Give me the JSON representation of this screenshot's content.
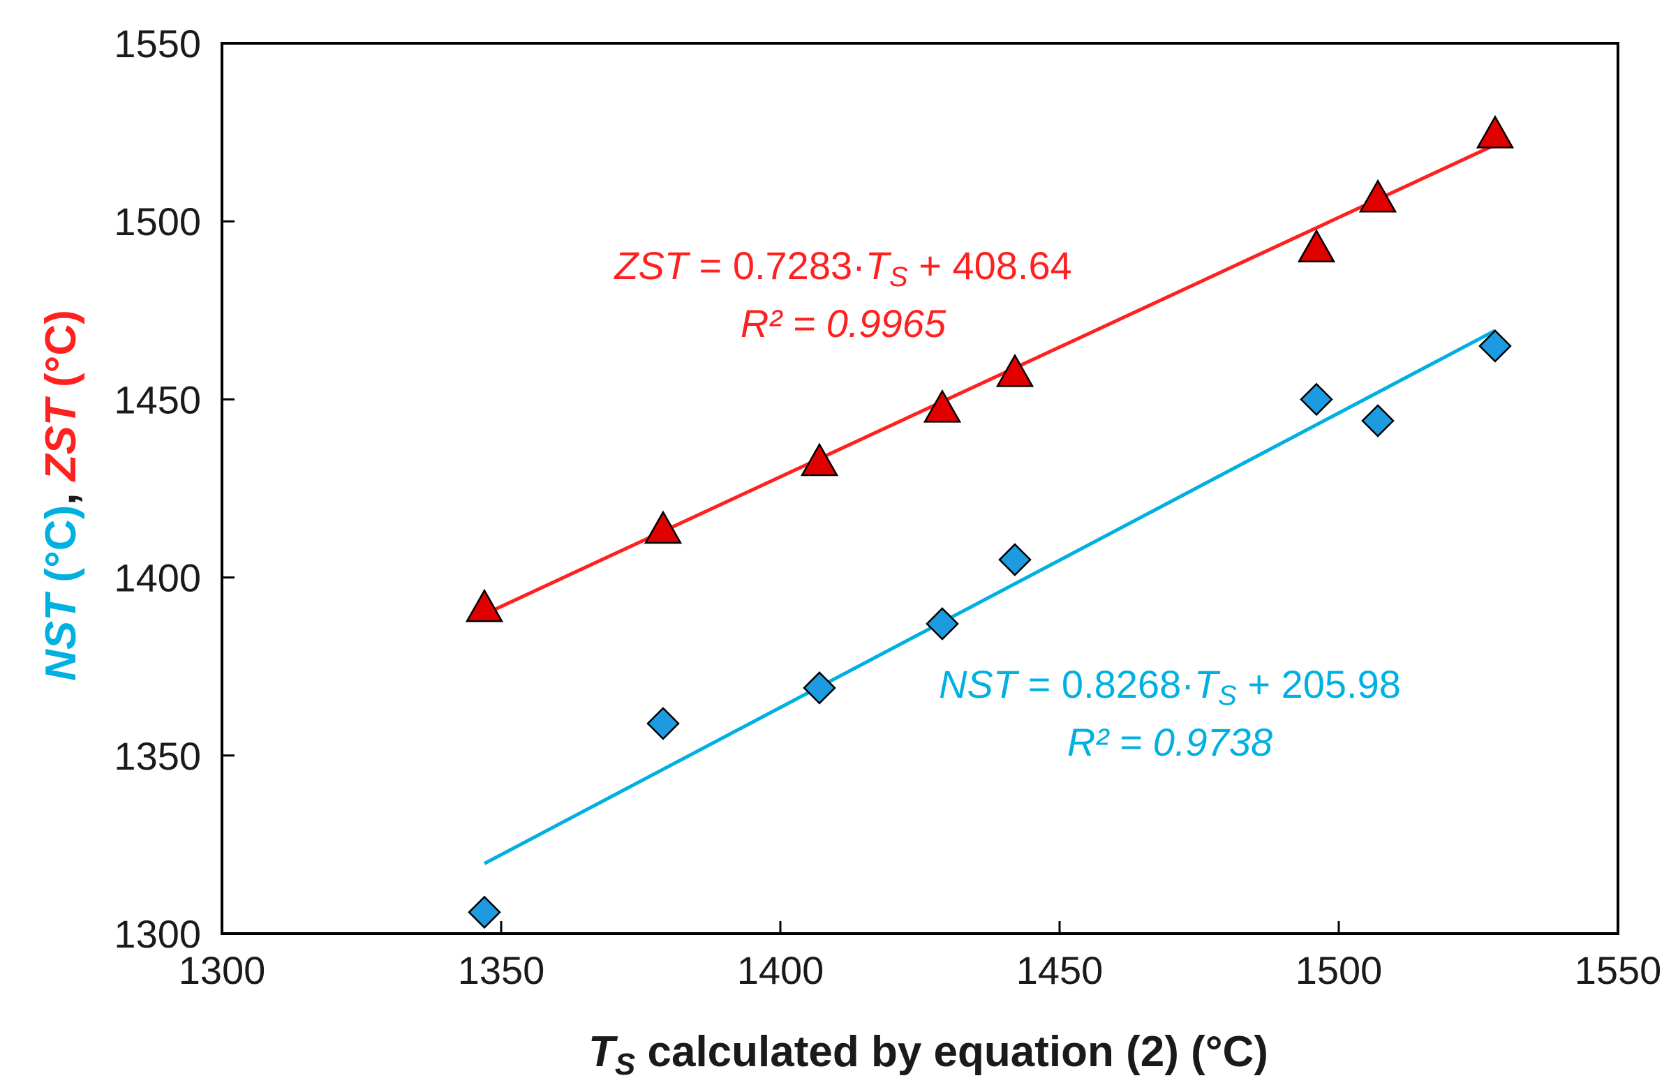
{
  "chart_data": {
    "type": "scatter",
    "xlabel": {
      "symbol": "T",
      "subscript": "S",
      "rest": " calculated by equation (2) (°C)"
    },
    "ylabel": {
      "nst_symbol": "NST",
      "nst_unit": " (°C)",
      "separator": ", ",
      "zst_symbol": "ZST",
      "zst_unit": " (°C)"
    },
    "xlim": [
      1300,
      1550
    ],
    "ylim": [
      1300,
      1550
    ],
    "x_ticks": [
      1300,
      1350,
      1400,
      1450,
      1500,
      1550
    ],
    "y_ticks": [
      1300,
      1350,
      1400,
      1450,
      1500,
      1550
    ],
    "x_tick_labels": [
      "1300",
      "1350",
      "1400",
      "1450",
      "1500",
      "1550"
    ],
    "y_tick_labels": [
      "1300",
      "1350",
      "1400",
      "1450",
      "1500",
      "1550"
    ],
    "grid": false,
    "colors": {
      "zst": "#ff2020",
      "zst_marker": "#e00000",
      "nst": "#00b0e0",
      "nst_marker": "#1e9be0",
      "axis": "#000000"
    },
    "series": [
      {
        "name": "ZST",
        "marker": "triangle",
        "x": [
          1347,
          1379,
          1407,
          1429,
          1442,
          1496,
          1507,
          1528
        ],
        "y": [
          1391,
          1413,
          1432,
          1447,
          1457,
          1492,
          1506,
          1524
        ],
        "fit": {
          "slope": 0.7283,
          "intercept": 408.64,
          "x_range": [
            1347,
            1528
          ]
        },
        "annotation": {
          "eq_symbol": "ZST",
          "eq_mid": " = 0.7283·",
          "eq_var": "T",
          "eq_sub": "S",
          "eq_end": " + 408.64",
          "r2": "R² = 0.9965"
        }
      },
      {
        "name": "NST",
        "marker": "diamond",
        "x": [
          1347,
          1379,
          1407,
          1429,
          1442,
          1496,
          1507,
          1528
        ],
        "y": [
          1306,
          1359,
          1369,
          1387,
          1405,
          1450,
          1444,
          1465
        ],
        "fit": {
          "slope": 0.8268,
          "intercept": 205.98,
          "x_range": [
            1347,
            1528
          ]
        },
        "annotation": {
          "eq_symbol": "NST",
          "eq_mid": " = 0.8268·",
          "eq_var": "T",
          "eq_sub": "S",
          "eq_end": " + 205.98",
          "r2": "R² = 0.9738"
        }
      }
    ]
  }
}
